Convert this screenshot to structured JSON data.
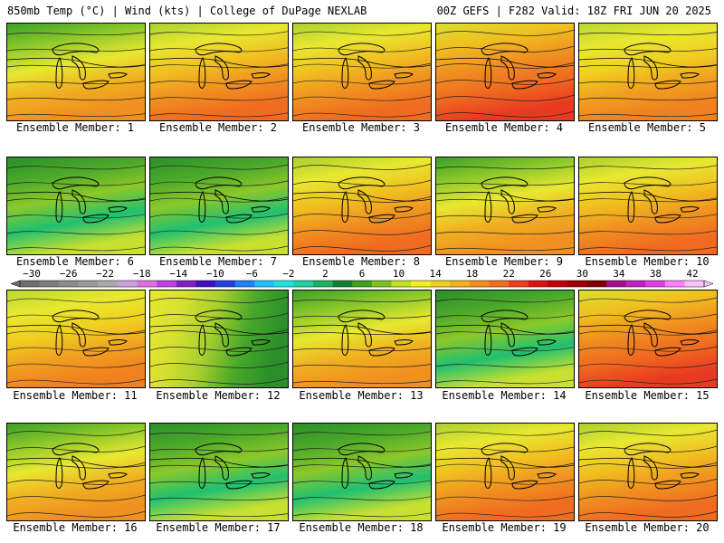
{
  "header": {
    "title_left": "850mb Temp (°C) | Wind (kts) | College of DuPage NEXLAB",
    "title_right": "00Z GEFS | F282 Valid: 18Z FRI JUN 20 2025"
  },
  "member_label_prefix": "Ensemble Member:",
  "members": [
    {
      "id": "1",
      "label": "Ensemble Member: 1",
      "scheme": "warm-green-north"
    },
    {
      "id": "2",
      "label": "Ensemble Member: 2",
      "scheme": "hot-south"
    },
    {
      "id": "3",
      "label": "Ensemble Member: 3",
      "scheme": "hot-south"
    },
    {
      "id": "4",
      "label": "Ensemble Member: 4",
      "scheme": "very-hot"
    },
    {
      "id": "5",
      "label": "Ensemble Member: 5",
      "scheme": "yellow-mix"
    },
    {
      "id": "6",
      "label": "Ensemble Member: 6",
      "scheme": "cool"
    },
    {
      "id": "7",
      "label": "Ensemble Member: 7",
      "scheme": "cool"
    },
    {
      "id": "8",
      "label": "Ensemble Member: 8",
      "scheme": "hot-south"
    },
    {
      "id": "9",
      "label": "Ensemble Member: 9",
      "scheme": "warm-green-north"
    },
    {
      "id": "10",
      "label": "Ensemble Member: 10",
      "scheme": "hot-south"
    },
    {
      "id": "11",
      "label": "Ensemble Member: 11",
      "scheme": "yellow-mix"
    },
    {
      "id": "12",
      "label": "Ensemble Member: 12",
      "scheme": "green-east"
    },
    {
      "id": "13",
      "label": "Ensemble Member: 13",
      "scheme": "warm-green-north"
    },
    {
      "id": "14",
      "label": "Ensemble Member: 14",
      "scheme": "cool"
    },
    {
      "id": "15",
      "label": "Ensemble Member: 15",
      "scheme": "very-hot"
    },
    {
      "id": "16",
      "label": "Ensemble Member: 16",
      "scheme": "warm-green-north"
    },
    {
      "id": "17",
      "label": "Ensemble Member: 17",
      "scheme": "cool"
    },
    {
      "id": "18",
      "label": "Ensemble Member: 18",
      "scheme": "cool"
    },
    {
      "id": "19",
      "label": "Ensemble Member: 19",
      "scheme": "hot-south"
    },
    {
      "id": "20",
      "label": "Ensemble Member: 20",
      "scheme": "hot-south"
    }
  ],
  "color_scale": {
    "units": "°C",
    "tick_labels": [
      "-30",
      "-26",
      "-22",
      "-18",
      "-14",
      "-10",
      "-6",
      "-2",
      "2",
      "6",
      "10",
      "14",
      "18",
      "22",
      "26",
      "30",
      "34",
      "38",
      "42"
    ],
    "tick_values": [
      -30,
      -26,
      -22,
      -18,
      -14,
      -10,
      -6,
      -2,
      2,
      6,
      10,
      14,
      18,
      22,
      26,
      30,
      34,
      38,
      42
    ],
    "colors": [
      "#6e6e6e",
      "#7d7d7d",
      "#8c8c8c",
      "#9b9b9b",
      "#aaaaaa",
      "#c8a0dc",
      "#e070e0",
      "#c040e0",
      "#8020c0",
      "#4010c0",
      "#2040e0",
      "#2080ff",
      "#20c0ff",
      "#20e0e0",
      "#20d0a0",
      "#20b060",
      "#108030",
      "#40a020",
      "#80c020",
      "#c0e020",
      "#f0f020",
      "#f0d020",
      "#f0b020",
      "#f09020",
      "#f07020",
      "#f04020",
      "#e01010",
      "#c00000",
      "#a00000",
      "#800000",
      "#a0108a",
      "#c020c0",
      "#e040e0",
      "#ff80ff",
      "#ffc0ff"
    ]
  },
  "scheme_colors": {
    "cool": [
      "#2a8f2a",
      "#4aa82a",
      "#8cc82a",
      "#20c070",
      "#c8e030"
    ],
    "warm-green-north": [
      "#3aa02a",
      "#8cc82a",
      "#e8e830",
      "#f0b020",
      "#f09020"
    ],
    "hot-south": [
      "#a8d030",
      "#e8e830",
      "#f0c020",
      "#f09020",
      "#f06a20"
    ],
    "very-hot": [
      "#d8e030",
      "#f0c020",
      "#f09020",
      "#f06a20",
      "#e83a20"
    ],
    "yellow-mix": [
      "#b8d830",
      "#e8e830",
      "#f0d020",
      "#f0a020",
      "#f08020"
    ],
    "green-east": [
      "#e8e830",
      "#d8e030",
      "#a8d030",
      "#4aa82a",
      "#2a8f2a"
    ]
  }
}
